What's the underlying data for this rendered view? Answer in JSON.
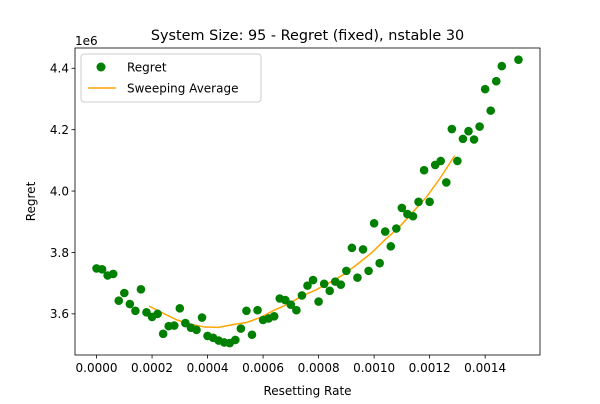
{
  "chart_data": {
    "type": "scatter",
    "title": "System Size: 95 - Regret (fixed), nstable 30",
    "xlabel": "Resetting Rate",
    "ylabel": "Regret",
    "offset_label": "1e6",
    "xlim": [
      -7.76e-05,
      0.0015976
    ],
    "ylim": [
      3.466,
      4.466
    ],
    "x_ticks": [
      0.0,
      0.0002,
      0.0004,
      0.0006,
      0.0008,
      0.001,
      0.0012,
      0.0014
    ],
    "x_tick_labels": [
      "0.0000",
      "0.0002",
      "0.0004",
      "0.0006",
      "0.0008",
      "0.0010",
      "0.0012",
      "0.0014"
    ],
    "y_ticks": [
      3.6,
      3.8,
      4.0,
      4.2,
      4.4
    ],
    "y_tick_labels": [
      "3.6",
      "3.8",
      "4.0",
      "4.2",
      "4.4"
    ],
    "grid": false,
    "legend_position": "top-left",
    "legend": [
      "Regret",
      "Sweeping Average"
    ],
    "series": [
      {
        "name": "Regret",
        "kind": "scatter",
        "color": "#008000",
        "x": [
          0.0,
          2e-05,
          4e-05,
          6e-05,
          8e-05,
          0.0001,
          0.00012,
          0.00014,
          0.00016,
          0.00018,
          0.0002,
          0.00022,
          0.00024,
          0.00026,
          0.00028,
          0.0003,
          0.00032,
          0.00034,
          0.00036,
          0.00038,
          0.0004,
          0.00042,
          0.00044,
          0.00046,
          0.00048,
          0.0005,
          0.00052,
          0.00054,
          0.00056,
          0.00058,
          0.0006,
          0.00062,
          0.00064,
          0.00066,
          0.00068,
          0.0007,
          0.00072,
          0.00074,
          0.00076,
          0.00078,
          0.0008,
          0.00082,
          0.00084,
          0.00086,
          0.00088,
          0.0009,
          0.00092,
          0.00094,
          0.00096,
          0.00098,
          0.001,
          0.00102,
          0.00104,
          0.00106,
          0.00108,
          0.0011,
          0.00112,
          0.00114,
          0.00116,
          0.00118,
          0.0012,
          0.00122,
          0.00124,
          0.00126,
          0.00128,
          0.0013,
          0.00132,
          0.00134,
          0.00136,
          0.00138,
          0.0014,
          0.00142,
          0.00144,
          0.00146,
          0.00152
        ],
        "y": [
          3.748,
          3.745,
          3.725,
          3.73,
          3.643,
          3.668,
          3.632,
          3.61,
          3.68,
          3.605,
          3.59,
          3.6,
          3.535,
          3.56,
          3.562,
          3.618,
          3.57,
          3.555,
          3.548,
          3.588,
          3.528,
          3.522,
          3.513,
          3.507,
          3.505,
          3.515,
          3.552,
          3.61,
          3.532,
          3.612,
          3.58,
          3.585,
          3.592,
          3.65,
          3.645,
          3.63,
          3.612,
          3.66,
          3.692,
          3.71,
          3.64,
          3.698,
          3.675,
          3.705,
          3.695,
          3.74,
          3.815,
          3.718,
          3.81,
          3.74,
          3.895,
          3.765,
          3.868,
          3.82,
          3.878,
          3.945,
          3.925,
          3.918,
          3.965,
          4.068,
          3.965,
          4.085,
          4.098,
          4.028,
          4.202,
          4.098,
          4.17,
          4.195,
          4.168,
          4.21,
          4.332,
          4.262,
          4.358,
          4.407,
          4.428
        ]
      },
      {
        "name": "Sweeping Average",
        "kind": "line",
        "color": "#ffa500",
        "x": [
          0.00019,
          0.00024,
          0.00029,
          0.00034,
          0.00039,
          0.00044,
          0.00049,
          0.00054,
          0.00059,
          0.00064,
          0.00069,
          0.00074,
          0.00079,
          0.00084,
          0.00089,
          0.00094,
          0.00099,
          0.00104,
          0.00109,
          0.00114,
          0.00119,
          0.00124,
          0.00129
        ],
        "y": [
          3.625,
          3.602,
          3.58,
          3.566,
          3.557,
          3.556,
          3.565,
          3.572,
          3.588,
          3.612,
          3.632,
          3.658,
          3.678,
          3.702,
          3.728,
          3.762,
          3.798,
          3.842,
          3.882,
          3.932,
          3.982,
          4.045,
          4.115
        ]
      }
    ]
  }
}
